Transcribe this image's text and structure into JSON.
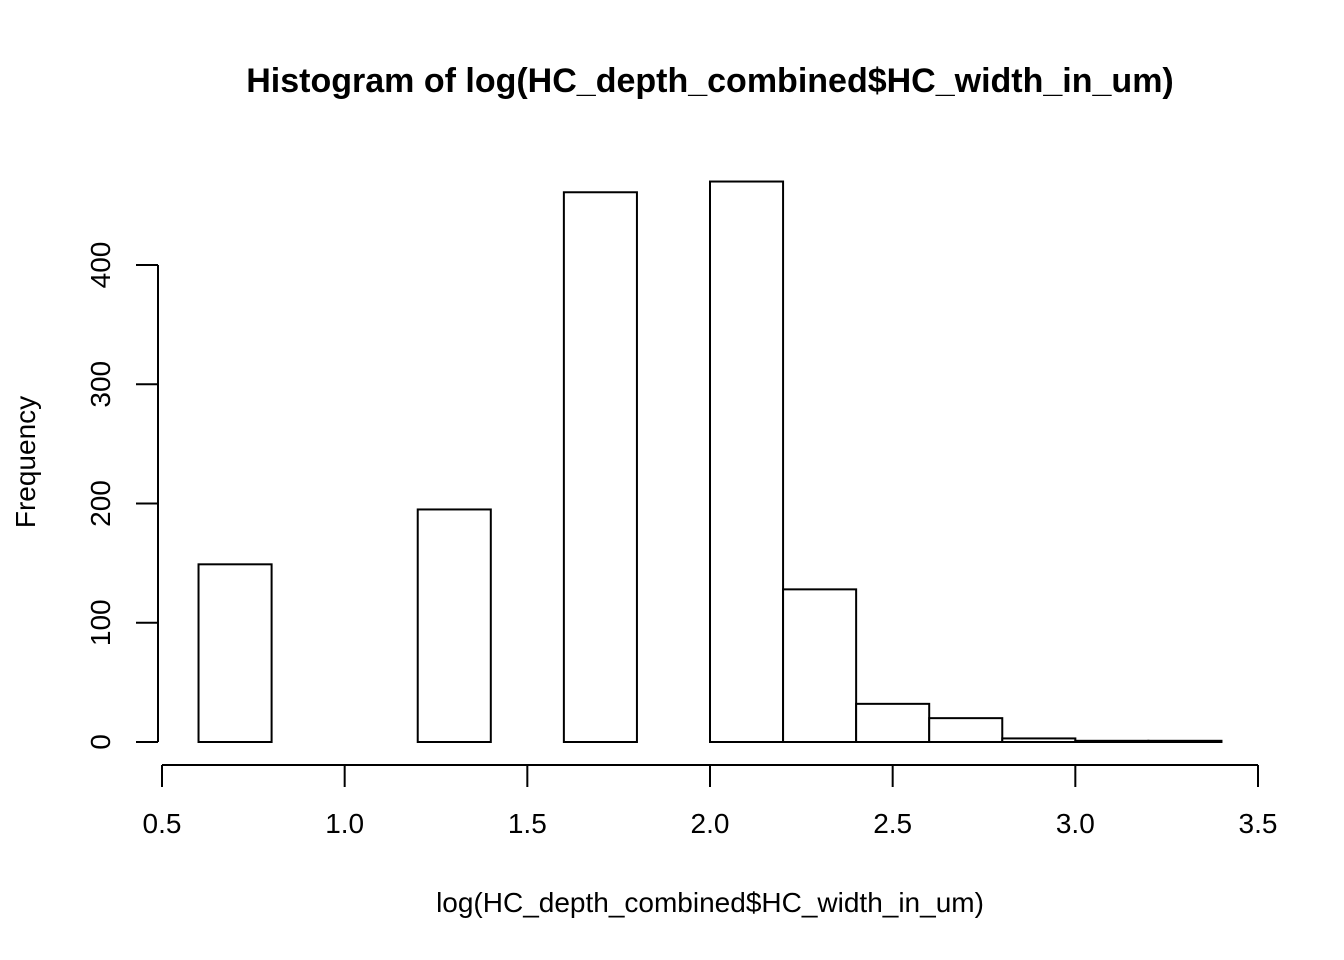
{
  "chart_data": {
    "type": "bar",
    "title": "Histogram of log(HC_depth_combined$HC_width_in_um)",
    "xlabel": "log(HC_depth_combined$HC_width_in_um)",
    "ylabel": "Frequency",
    "bins": [
      {
        "start": 0.6,
        "end": 0.8,
        "count": 149
      },
      {
        "start": 0.8,
        "end": 1.0,
        "count": 0
      },
      {
        "start": 1.0,
        "end": 1.2,
        "count": 0
      },
      {
        "start": 1.2,
        "end": 1.4,
        "count": 195
      },
      {
        "start": 1.4,
        "end": 1.6,
        "count": 0
      },
      {
        "start": 1.6,
        "end": 1.8,
        "count": 461
      },
      {
        "start": 1.8,
        "end": 2.0,
        "count": 0
      },
      {
        "start": 2.0,
        "end": 2.2,
        "count": 470
      },
      {
        "start": 2.2,
        "end": 2.4,
        "count": 128
      },
      {
        "start": 2.4,
        "end": 2.6,
        "count": 32
      },
      {
        "start": 2.6,
        "end": 2.8,
        "count": 20
      },
      {
        "start": 2.8,
        "end": 3.0,
        "count": 3
      },
      {
        "start": 3.0,
        "end": 3.2,
        "count": 1
      },
      {
        "start": 3.2,
        "end": 3.4,
        "count": 1
      }
    ],
    "xlim": [
      0.5,
      3.5
    ],
    "ylim": [
      0,
      480
    ],
    "xticks": [
      0.5,
      1.0,
      1.5,
      2.0,
      2.5,
      3.0,
      3.5
    ],
    "xtick_labels": [
      "0.5",
      "1.0",
      "1.5",
      "2.0",
      "2.5",
      "3.0",
      "3.5"
    ],
    "yticks": [
      0,
      100,
      200,
      300,
      400
    ],
    "ytick_labels": [
      "0",
      "100",
      "200",
      "300",
      "400"
    ],
    "grid": false,
    "bar_fill": "#ffffff",
    "bar_stroke": "#000000"
  }
}
